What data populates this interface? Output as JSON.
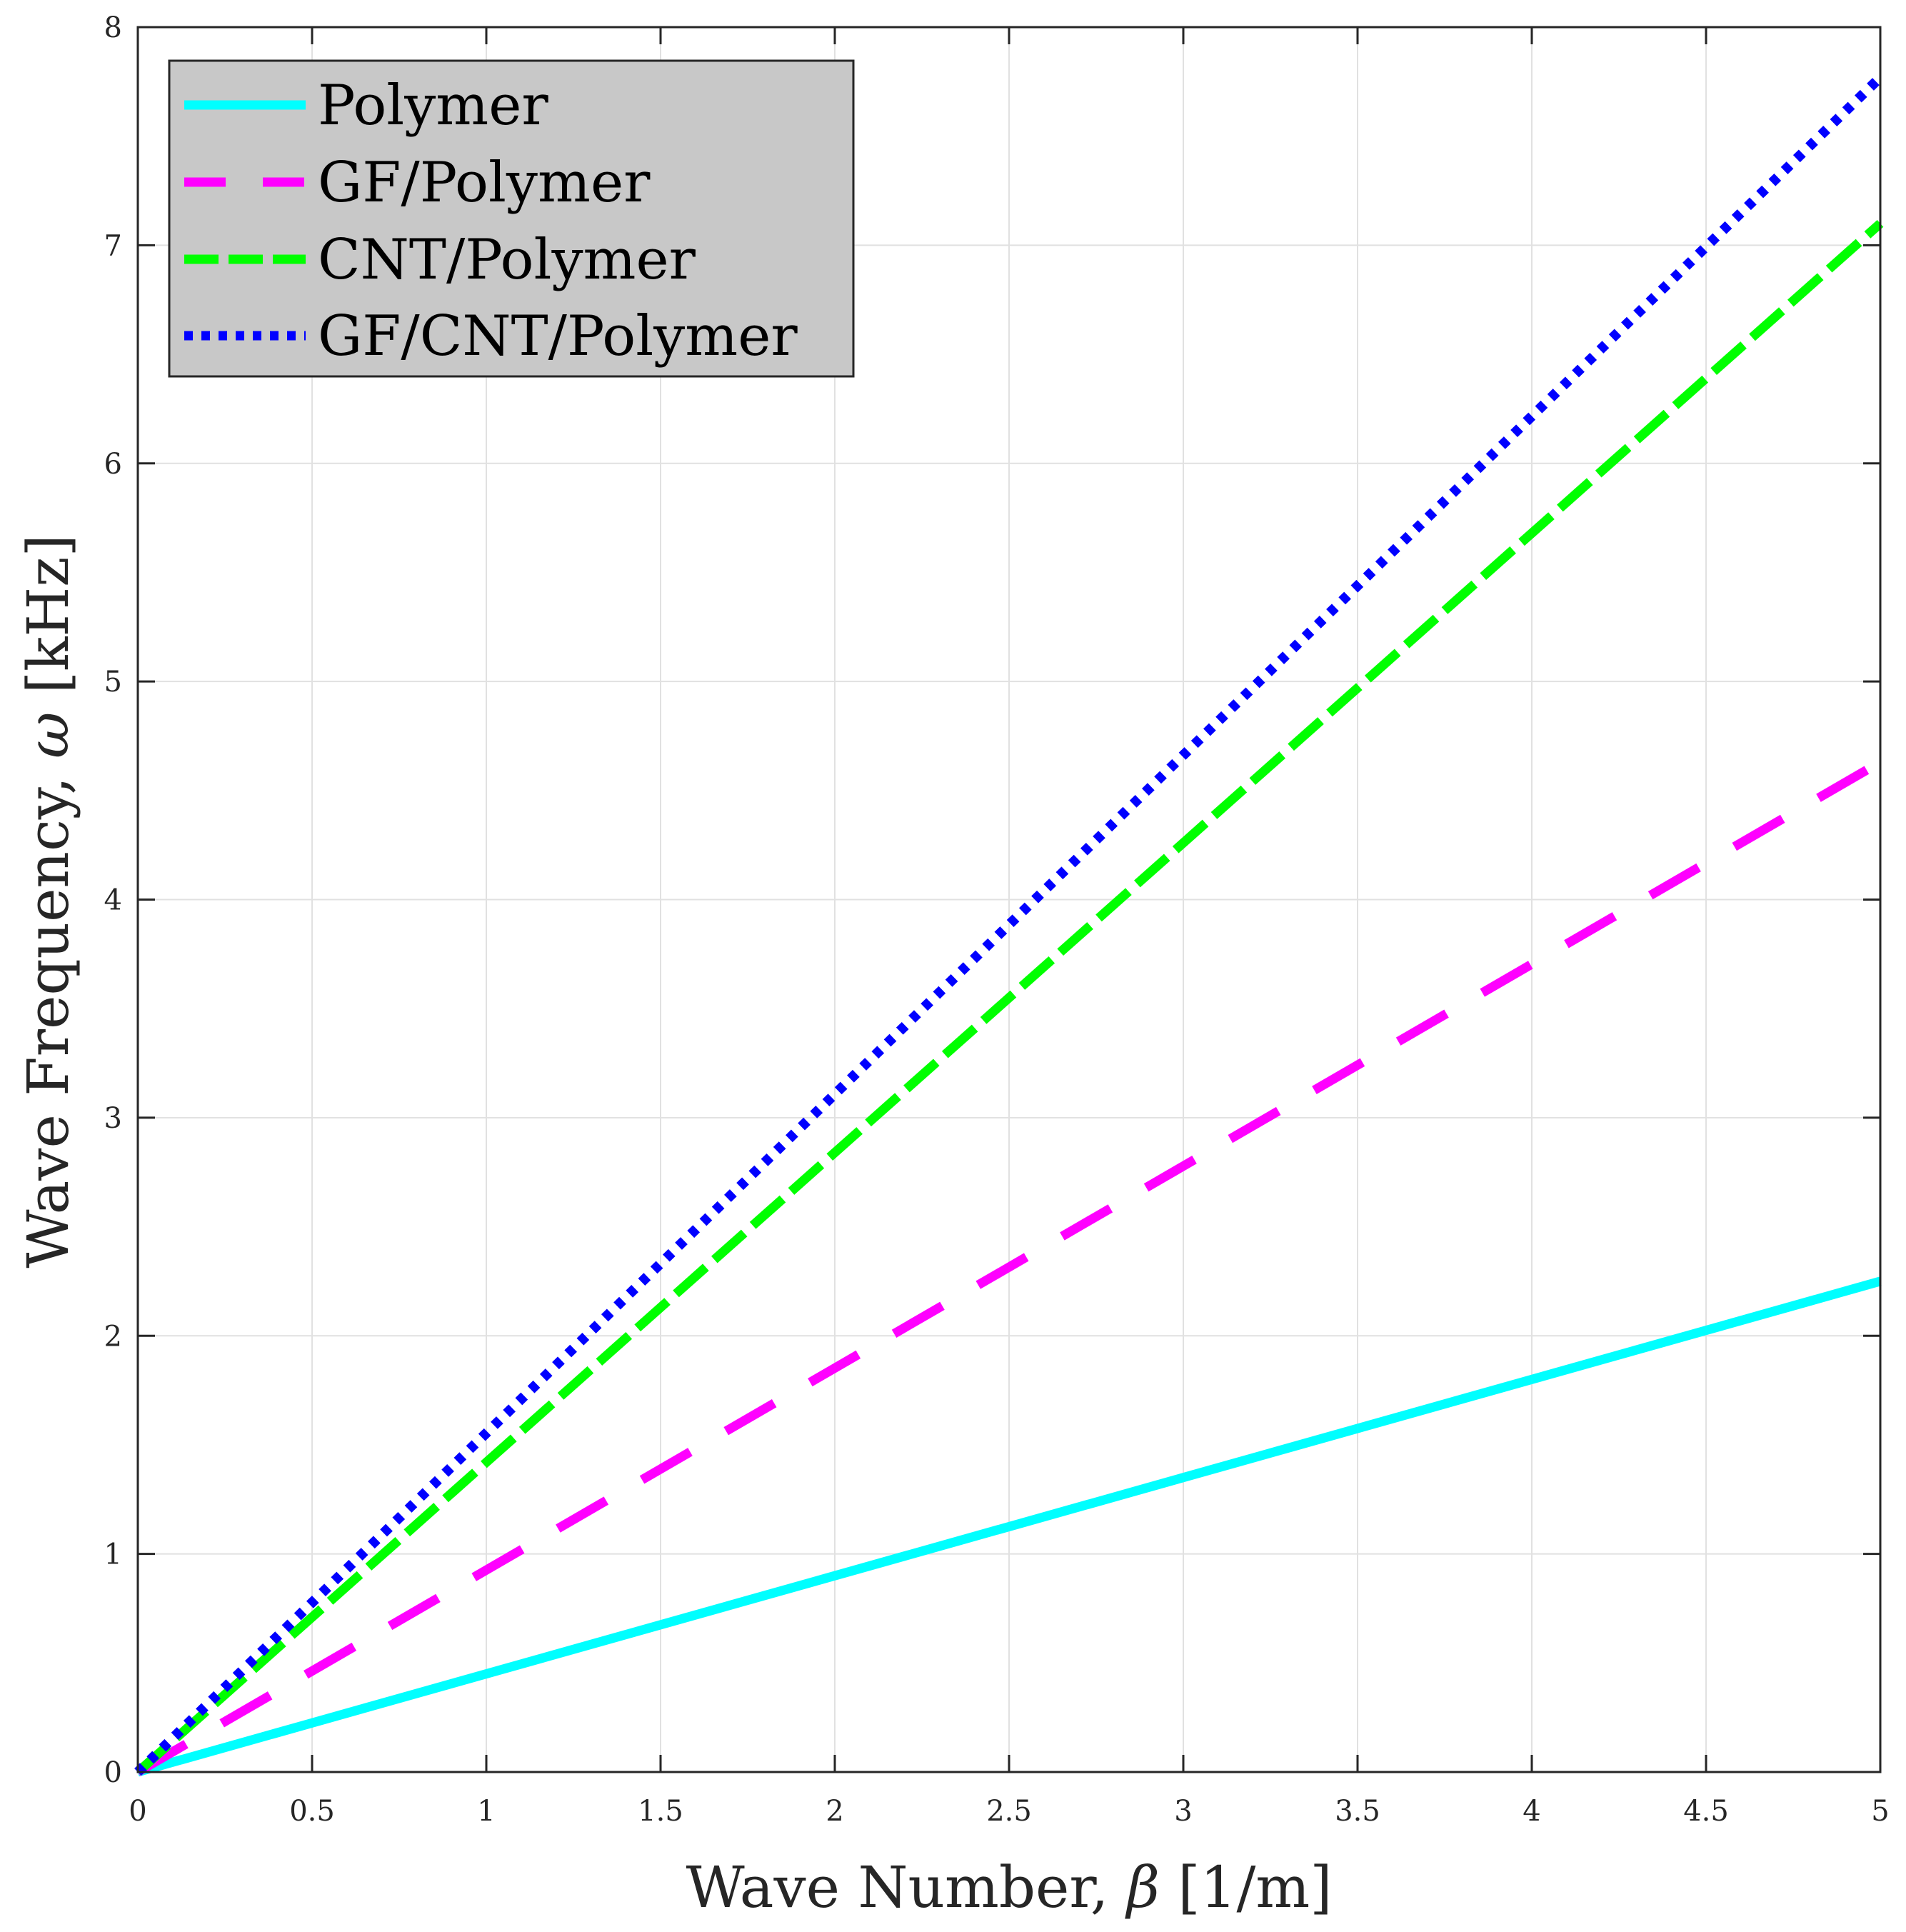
{
  "chart_data": {
    "type": "line",
    "title": "",
    "xlabel_prefix": "Wave Number, ",
    "xlabel_symbol": "β",
    "xlabel_suffix": " [1/m]",
    "ylabel_prefix": "Wave Frequency, ",
    "ylabel_symbol": "ω",
    "ylabel_suffix": " [kHz]",
    "xlim": [
      0,
      5
    ],
    "ylim": [
      0,
      8
    ],
    "xticks": [
      0,
      0.5,
      1,
      1.5,
      2,
      2.5,
      3,
      3.5,
      4,
      4.5,
      5
    ],
    "xtick_labels": [
      "0",
      "0.5",
      "1",
      "1.5",
      "2",
      "2.5",
      "3",
      "3.5",
      "4",
      "4.5",
      "5"
    ],
    "yticks": [
      0,
      1,
      2,
      3,
      4,
      5,
      6,
      7,
      8
    ],
    "ytick_labels": [
      "0",
      "1",
      "2",
      "3",
      "4",
      "5",
      "6",
      "7",
      "8"
    ],
    "grid": true,
    "legend_position": "top-left",
    "series": [
      {
        "name": "Polymer",
        "style": "solid",
        "color": "#00FFFF",
        "x": [
          0,
          5
        ],
        "y": [
          0,
          2.25
        ]
      },
      {
        "name": "GF/Polymer",
        "style": "dashed",
        "color": "#FF00FF",
        "x": [
          0,
          5
        ],
        "y": [
          0,
          4.63
        ]
      },
      {
        "name": "CNT/Polymer",
        "style": "dashed",
        "color": "#00FF00",
        "x": [
          0,
          5
        ],
        "y": [
          0,
          7.1
        ]
      },
      {
        "name": "GF/CNT/Polymer",
        "style": "dotted",
        "color": "#0000FF",
        "x": [
          0,
          5
        ],
        "y": [
          0,
          7.77
        ]
      }
    ]
  }
}
